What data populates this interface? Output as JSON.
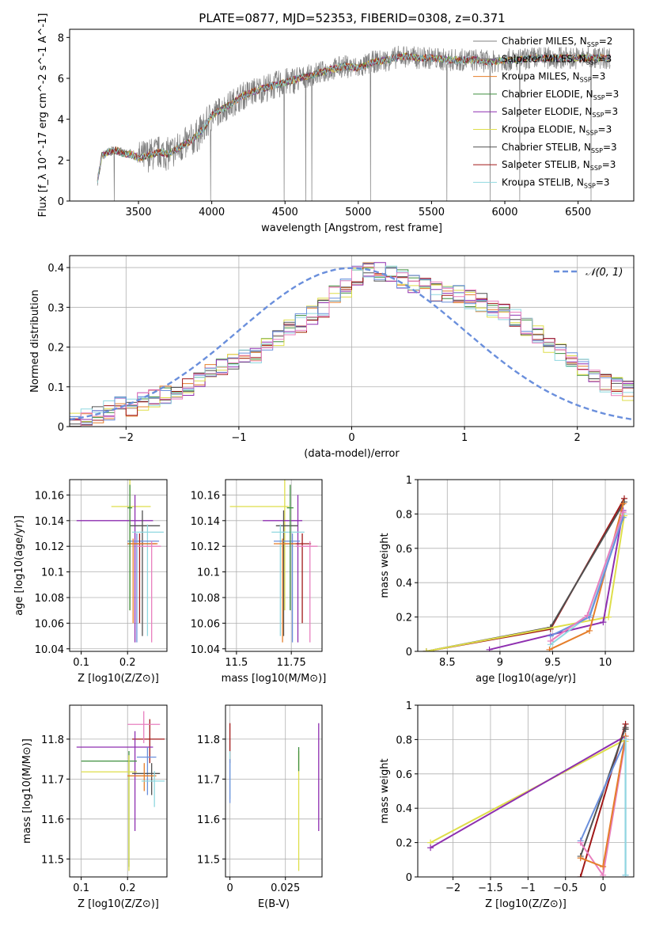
{
  "figure": {
    "title": "PLATE=0877, MJD=52353, FIBERID=0308, z=0.371"
  },
  "colors": {
    "data": "#808080",
    "normal_curve": "#6a8fdc",
    "models": [
      "#808080",
      "#808080",
      "#e57e2a",
      "#3f8f3f",
      "#8e2fb0",
      "#dede4a",
      "#505050",
      "#a01818",
      "#8fd8e0"
    ]
  },
  "legend": {
    "spectrum": [
      {
        "label": "Chabrier MILES, N_SSP=2",
        "color": "#808080"
      },
      {
        "label": "Salpeter MILES, N_SSP=3",
        "color": "#808080"
      },
      {
        "label": "Kroupa MILES, N_SSP=3",
        "color": "#e57e2a"
      },
      {
        "label": "Chabrier ELODIE, N_SSP=3",
        "color": "#3f8f3f"
      },
      {
        "label": "Salpeter ELODIE, N_SSP=3",
        "color": "#8e2fb0"
      },
      {
        "label": "Kroupa ELODIE, N_SSP=3",
        "color": "#dede4a"
      },
      {
        "label": "Chabrier STELIB, N_SSP=3",
        "color": "#505050"
      },
      {
        "label": "Salpeter STELIB, N_SSP=3",
        "color": "#a01818"
      },
      {
        "label": "Kroupa STELIB, N_SSP=3",
        "color": "#8fd8e0"
      }
    ],
    "histogram": "𝒩(0, 1)"
  },
  "chart_data": [
    {
      "id": "spectrum",
      "type": "line",
      "xlabel": "wavelength [Angstrom, rest frame]",
      "ylabel": "Flux [f_λ 10^-17 erg cm^-2 s^-1 A^-1]",
      "xlim": [
        3030,
        6880
      ],
      "ylim": [
        0,
        8.4
      ],
      "xticks": [
        3500,
        4000,
        4500,
        5000,
        5500,
        6000,
        6500
      ],
      "yticks": [
        0,
        2,
        4,
        6,
        8
      ],
      "x": [
        3220,
        3250,
        3300,
        3350,
        3400,
        3450,
        3500,
        3550,
        3600,
        3650,
        3700,
        3750,
        3800,
        3850,
        3900,
        3950,
        4000,
        4100,
        4200,
        4300,
        4400,
        4500,
        4600,
        4700,
        4800,
        4900,
        5000,
        5100,
        5200,
        5300,
        5400,
        5500,
        5600,
        5700,
        5800,
        5900,
        6000,
        6100,
        6200,
        6300,
        6400,
        6500,
        6600,
        6720
      ],
      "model_flux": [
        1.0,
        2.2,
        2.4,
        2.5,
        2.3,
        2.3,
        2.1,
        2.2,
        2.3,
        2.4,
        2.3,
        2.5,
        2.7,
        2.9,
        3.2,
        3.6,
        4.2,
        4.6,
        5.1,
        5.4,
        5.6,
        5.8,
        6.0,
        6.2,
        6.4,
        6.6,
        6.5,
        6.8,
        6.9,
        7.1,
        7.0,
        7.0,
        6.9,
        6.9,
        6.9,
        6.8,
        6.9,
        6.9,
        7.0,
        7.0,
        7.0,
        7.0,
        7.0,
        7.0
      ],
      "data_scatter": 0.7
    },
    {
      "id": "residuals",
      "type": "line",
      "xlabel": "(data-model)/error",
      "ylabel": "Normed distribution",
      "xlim": [
        -2.5,
        2.5
      ],
      "ylim": [
        0,
        0.43
      ],
      "xticks": [
        -2,
        -1,
        0,
        1,
        2
      ],
      "yticks": [
        0.0,
        0.1,
        0.2,
        0.3,
        0.4
      ],
      "bin_width": 0.1,
      "histogram_base": [
        0.02,
        0.02,
        0.03,
        0.04,
        0.05,
        0.05,
        0.06,
        0.07,
        0.08,
        0.09,
        0.1,
        0.12,
        0.14,
        0.15,
        0.16,
        0.17,
        0.18,
        0.2,
        0.22,
        0.25,
        0.26,
        0.28,
        0.3,
        0.33,
        0.35,
        0.38,
        0.39,
        0.39,
        0.38,
        0.37,
        0.36,
        0.35,
        0.34,
        0.33,
        0.33,
        0.32,
        0.31,
        0.3,
        0.29,
        0.27,
        0.25,
        0.23,
        0.21,
        0.19,
        0.17,
        0.15,
        0.13,
        0.11,
        0.1,
        0.09
      ],
      "normal_mean": 0,
      "normal_sigma": 1
    },
    {
      "id": "age_vs_z",
      "type": "scatter",
      "xlabel": "Z [log10(Z/Z⊙)]",
      "ylabel": "age  [log10(age/yr)]",
      "xlim": [
        0.075,
        0.285
      ],
      "ylim": [
        10.038,
        10.172
      ],
      "xticks": [
        0.1,
        0.2
      ],
      "yticks": [
        10.04,
        10.06,
        10.08,
        10.1,
        10.12,
        10.14,
        10.16
      ],
      "points": [
        {
          "x": 0.205,
          "y": 10.151,
          "xerr": [
            0.165,
            0.25
          ],
          "yerr": [
            10.07,
            10.172
          ],
          "color": "#dede4a"
        },
        {
          "x": 0.216,
          "y": 10.14,
          "xerr": [
            0.09,
            0.255
          ],
          "yerr": [
            10.045,
            10.16
          ],
          "color": "#8e2fb0"
        },
        {
          "x": 0.232,
          "y": 10.136,
          "xerr": [
            0.205,
            0.27
          ],
          "yerr": [
            10.05,
            10.148
          ],
          "color": "#505050"
        },
        {
          "x": 0.243,
          "y": 10.131,
          "xerr": [
            0.21,
            0.278
          ],
          "yerr": [
            10.05,
            10.137
          ],
          "color": "#8fd8e0"
        },
        {
          "x": 0.22,
          "y": 10.124,
          "xerr": [
            0.2,
            0.268
          ],
          "yerr": [
            10.045,
            10.13
          ],
          "color": "#6a8fdc"
        },
        {
          "x": 0.226,
          "y": 10.122,
          "xerr": [
            0.2,
            0.262
          ],
          "yerr": [
            10.06,
            10.13
          ],
          "color": "#a01818"
        },
        {
          "x": 0.212,
          "y": 10.122,
          "xerr": [
            0.2,
            0.265
          ],
          "yerr": [
            10.06,
            10.126
          ],
          "color": "#e57e2a"
        },
        {
          "x": 0.252,
          "y": 10.12,
          "xerr": [
            0.22,
            0.272
          ],
          "yerr": [
            10.045,
            10.124
          ],
          "color": "#e87fbf"
        },
        {
          "x": 0.205,
          "y": 10.15,
          "xerr": [
            0.2,
            0.21
          ],
          "yerr": [
            10.07,
            10.168
          ],
          "color": "#3f8f3f"
        }
      ]
    },
    {
      "id": "age_vs_mass",
      "type": "scatter",
      "xlabel": "mass [log10(M/M⊙)]",
      "ylabel": "",
      "xlim": [
        11.45,
        11.89
      ],
      "ylim": [
        10.038,
        10.172
      ],
      "xticks": [
        11.5,
        11.75
      ],
      "yticks": [
        10.04,
        10.06,
        10.08,
        10.1,
        10.12,
        10.14,
        10.16
      ],
      "points": [
        {
          "x": 11.72,
          "y": 10.151,
          "xerr": [
            11.47,
            11.74
          ],
          "yerr": [
            10.07,
            10.172
          ],
          "color": "#dede4a"
        },
        {
          "x": 11.78,
          "y": 10.14,
          "xerr": [
            11.62,
            11.8
          ],
          "yerr": [
            10.045,
            10.16
          ],
          "color": "#8e2fb0"
        },
        {
          "x": 11.715,
          "y": 10.136,
          "xerr": [
            11.68,
            11.78
          ],
          "yerr": [
            10.05,
            10.148
          ],
          "color": "#505050"
        },
        {
          "x": 11.7,
          "y": 10.131,
          "xerr": [
            11.66,
            11.81
          ],
          "yerr": [
            10.05,
            10.137
          ],
          "color": "#8fd8e0"
        },
        {
          "x": 11.755,
          "y": 10.124,
          "xerr": [
            11.67,
            11.79
          ],
          "yerr": [
            10.045,
            10.13
          ],
          "color": "#6a8fdc"
        },
        {
          "x": 11.8,
          "y": 10.122,
          "xerr": [
            11.72,
            11.84
          ],
          "yerr": [
            10.06,
            10.13
          ],
          "color": "#a01818"
        },
        {
          "x": 11.71,
          "y": 10.122,
          "xerr": [
            11.67,
            11.77
          ],
          "yerr": [
            10.045,
            10.126
          ],
          "color": "#e57e2a"
        },
        {
          "x": 11.835,
          "y": 10.12,
          "xerr": [
            11.77,
            11.87
          ],
          "yerr": [
            10.045,
            10.124
          ],
          "color": "#e87fbf"
        },
        {
          "x": 11.745,
          "y": 10.15,
          "xerr": [
            11.73,
            11.76
          ],
          "yerr": [
            10.07,
            10.168
          ],
          "color": "#3f8f3f"
        }
      ]
    },
    {
      "id": "massweight_vs_age",
      "type": "line",
      "xlabel": "age  [log10(age/yr)]",
      "ylabel": "mass weight",
      "xlim": [
        8.22,
        10.27
      ],
      "ylim": [
        0,
        1
      ],
      "xticks": [
        8.5,
        9.0,
        9.5,
        10.0
      ],
      "yticks": [
        0.0,
        0.2,
        0.4,
        0.6,
        0.8,
        1.0
      ],
      "series": [
        {
          "x": [
            8.3,
            9.48,
            10.18
          ],
          "y": [
            0.0,
            0.13,
            0.89
          ],
          "color": "#a01818"
        },
        {
          "x": [
            8.3,
            9.48,
            10.18
          ],
          "y": [
            0.0,
            0.14,
            0.87
          ],
          "color": "#505050"
        },
        {
          "x": [
            8.3,
            10.03,
            10.18
          ],
          "y": [
            0.0,
            0.2,
            0.79
          ],
          "color": "#dede4a"
        },
        {
          "x": [
            8.9,
            9.98,
            10.17
          ],
          "y": [
            0.01,
            0.17,
            0.82
          ],
          "color": "#8e2fb0"
        },
        {
          "x": [
            9.47,
            9.85,
            10.17
          ],
          "y": [
            0.01,
            0.12,
            0.86
          ],
          "color": "#e57e2a"
        },
        {
          "x": [
            9.48,
            9.85,
            10.17
          ],
          "y": [
            0.04,
            0.21,
            0.8
          ],
          "color": "#8fd8e0"
        },
        {
          "x": [
            9.48,
            9.85,
            10.17
          ],
          "y": [
            0.09,
            0.2,
            0.78
          ],
          "color": "#6a8fdc"
        },
        {
          "x": [
            9.48,
            9.83,
            10.17
          ],
          "y": [
            0.06,
            0.21,
            0.81
          ],
          "color": "#e87fbf"
        }
      ]
    },
    {
      "id": "mass_vs_z",
      "type": "scatter",
      "xlabel": "Z [log10(Z/Z⊙)]",
      "ylabel": "mass [log10(M/M⊙)]",
      "xlim": [
        0.075,
        0.285
      ],
      "ylim": [
        11.455,
        11.885
      ],
      "xticks": [
        0.1,
        0.2
      ],
      "yticks": [
        11.5,
        11.6,
        11.7,
        11.8
      ],
      "points": [
        {
          "x": 0.248,
          "y": 11.8,
          "xerr": [
            0.21,
            0.28
          ],
          "yerr": [
            11.74,
            11.85
          ],
          "color": "#a01818"
        },
        {
          "x": 0.216,
          "y": 11.78,
          "xerr": [
            0.09,
            0.255
          ],
          "yerr": [
            11.57,
            11.82
          ],
          "color": "#8e2fb0"
        },
        {
          "x": 0.235,
          "y": 11.837,
          "xerr": [
            0.2,
            0.27
          ],
          "yerr": [
            11.79,
            11.87
          ],
          "color": "#e87fbf"
        },
        {
          "x": 0.203,
          "y": 11.745,
          "xerr": [
            0.1,
            0.22
          ],
          "yerr": [
            11.48,
            11.77
          ],
          "color": "#3f8f3f"
        },
        {
          "x": 0.243,
          "y": 11.755,
          "xerr": [
            0.22,
            0.262
          ],
          "yerr": [
            11.66,
            11.78
          ],
          "color": "#6a8fdc"
        },
        {
          "x": 0.203,
          "y": 11.718,
          "xerr": [
            0.1,
            0.22
          ],
          "yerr": [
            11.47,
            11.76
          ],
          "color": "#dede4a"
        },
        {
          "x": 0.252,
          "y": 11.714,
          "xerr": [
            0.21,
            0.27
          ],
          "yerr": [
            11.66,
            11.74
          ],
          "color": "#505050"
        },
        {
          "x": 0.236,
          "y": 11.708,
          "xerr": [
            0.2,
            0.262
          ],
          "yerr": [
            11.67,
            11.74
          ],
          "color": "#e57e2a"
        },
        {
          "x": 0.258,
          "y": 11.695,
          "xerr": [
            0.23,
            0.28
          ],
          "yerr": [
            11.63,
            11.72
          ],
          "color": "#8fd8e0"
        }
      ]
    },
    {
      "id": "mass_vs_ebv",
      "type": "scatter",
      "xlabel": "E(B-V)",
      "ylabel": "",
      "xlim": [
        -0.002,
        0.0415
      ],
      "ylim": [
        11.455,
        11.885
      ],
      "xticks": [
        0.0,
        0.025
      ],
      "yticks": [
        11.5,
        11.6,
        11.7,
        11.8
      ],
      "points": [
        {
          "x": 0.0,
          "y": 11.8,
          "yerr": [
            11.74,
            11.84
          ],
          "color": "#a01818"
        },
        {
          "x": 0.0,
          "y": 11.73,
          "yerr": [
            11.65,
            11.77
          ],
          "color": "#8fd8e0"
        },
        {
          "x": 0.0,
          "y": 11.7,
          "yerr": [
            11.64,
            11.75
          ],
          "color": "#6a8fdc"
        },
        {
          "x": 0.031,
          "y": 11.72,
          "yerr": [
            11.47,
            11.77
          ],
          "color": "#dede4a"
        },
        {
          "x": 0.031,
          "y": 11.74,
          "yerr": [
            11.72,
            11.78
          ],
          "color": "#3f8f3f"
        },
        {
          "x": 0.04,
          "y": 11.78,
          "yerr": [
            11.57,
            11.84
          ],
          "color": "#8e2fb0"
        }
      ]
    },
    {
      "id": "massweight_vs_z",
      "type": "line",
      "xlabel": "Z [log10(Z/Z⊙)]",
      "ylabel": "mass weight",
      "xlim": [
        -2.47,
        0.41
      ],
      "ylim": [
        0,
        1
      ],
      "xticks": [
        -2.0,
        -1.5,
        -1.0,
        -0.5,
        0.0
      ],
      "yticks": [
        0.0,
        0.2,
        0.4,
        0.6,
        0.8,
        1.0
      ],
      "series": [
        {
          "x": [
            -2.3,
            0.3,
            0.3
          ],
          "y": [
            0.2,
            0.8,
            0.79
          ],
          "color": "#dede4a"
        },
        {
          "x": [
            -2.3,
            0.3,
            0.3
          ],
          "y": [
            0.17,
            0.82,
            0.8
          ],
          "color": "#8e2fb0"
        },
        {
          "x": [
            -0.3,
            0.3,
            0.3
          ],
          "y": [
            0.0,
            0.89,
            0.86
          ],
          "color": "#a01818"
        },
        {
          "x": [
            -0.3,
            0.3,
            0.3
          ],
          "y": [
            0.12,
            0.87,
            0.86
          ],
          "color": "#505050"
        },
        {
          "x": [
            -0.3,
            0.3,
            0.3
          ],
          "y": [
            0.21,
            0.8,
            0.01
          ],
          "color": "#6a8fdc"
        },
        {
          "x": [
            -0.3,
            0.0,
            0.3
          ],
          "y": [
            0.2,
            0.01,
            0.8
          ],
          "color": "#e87fbf"
        },
        {
          "x": [
            -0.3,
            0.0,
            0.3
          ],
          "y": [
            0.11,
            0.06,
            0.82
          ],
          "color": "#e57e2a"
        },
        {
          "x": [
            0.3,
            0.3
          ],
          "y": [
            0.01,
            0.8
          ],
          "color": "#8fd8e0"
        }
      ]
    }
  ]
}
